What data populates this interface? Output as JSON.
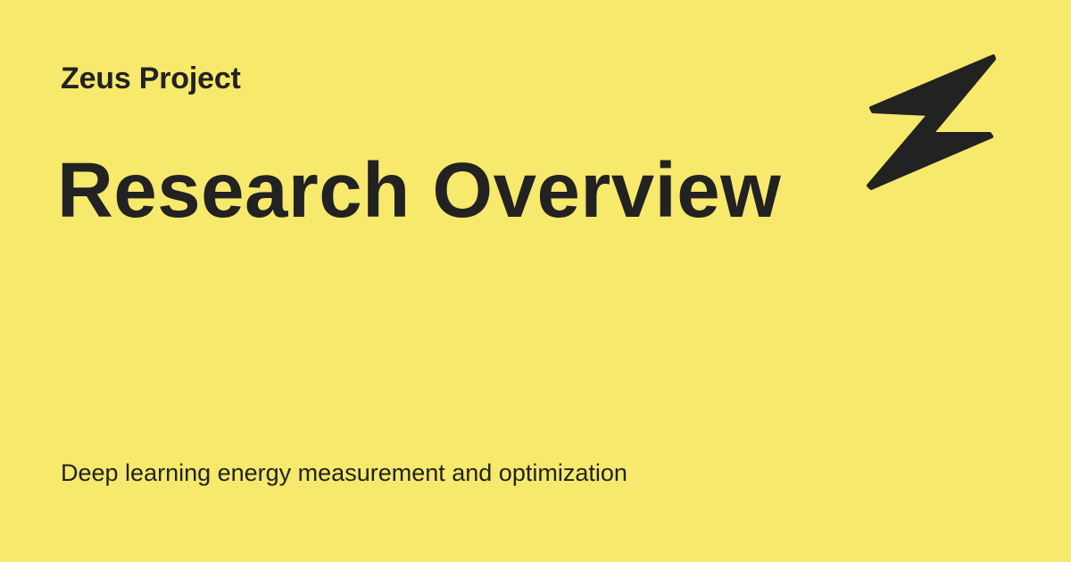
{
  "header": {
    "site_name": "Zeus Project"
  },
  "main": {
    "title": "Research Overview",
    "tagline": "Deep learning energy measurement and optimization"
  },
  "logo": {
    "icon": "lightning-bolt-icon"
  },
  "colors": {
    "background": "#f6e96c",
    "text": "#222222"
  }
}
